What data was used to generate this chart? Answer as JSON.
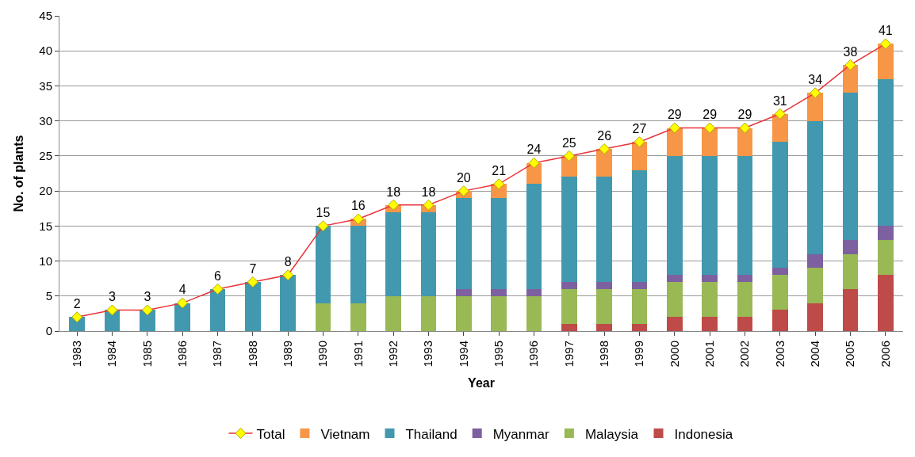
{
  "chart_data": {
    "type": "bar",
    "stacked": true,
    "xlabel": "Year",
    "ylabel": "No. of plants",
    "categories": [
      "1983",
      "1984",
      "1985",
      "1986",
      "1987",
      "1988",
      "1989",
      "1990",
      "1991",
      "1992",
      "1993",
      "1994",
      "1995",
      "1996",
      "1997",
      "1998",
      "1999",
      "2000",
      "2001",
      "2002",
      "2003",
      "2004",
      "2005",
      "2006"
    ],
    "series": [
      {
        "name": "Indonesia",
        "color": "#be4b48",
        "values": [
          null,
          null,
          null,
          null,
          null,
          null,
          null,
          null,
          null,
          null,
          null,
          null,
          null,
          null,
          1,
          1,
          1,
          2,
          2,
          2,
          3,
          4,
          6,
          8
        ]
      },
      {
        "name": "Malaysia",
        "color": "#98b954",
        "values": [
          null,
          null,
          null,
          null,
          null,
          null,
          null,
          4,
          4,
          5,
          5,
          5,
          5,
          5,
          5,
          5,
          5,
          5,
          5,
          5,
          5,
          5,
          5,
          5
        ]
      },
      {
        "name": "Myanmar",
        "color": "#7d60a0",
        "values": [
          null,
          null,
          null,
          null,
          null,
          null,
          null,
          null,
          null,
          null,
          null,
          1,
          1,
          1,
          1,
          1,
          1,
          1,
          1,
          1,
          1,
          2,
          2,
          2
        ]
      },
      {
        "name": "Thailand",
        "color": "#4198af",
        "values": [
          2,
          3,
          3,
          4,
          6,
          7,
          8,
          11,
          11,
          12,
          12,
          13,
          13,
          15,
          15,
          15,
          16,
          17,
          17,
          17,
          18,
          19,
          21,
          21
        ]
      },
      {
        "name": "Vietnam",
        "color": "#f79646",
        "values": [
          null,
          null,
          null,
          null,
          null,
          null,
          null,
          null,
          1,
          1,
          1,
          1,
          2,
          3,
          3,
          4,
          4,
          4,
          4,
          4,
          4,
          4,
          4,
          5
        ]
      },
      {
        "name": "Total",
        "type": "line",
        "color": "#e8333a",
        "marker": "diamond",
        "values": [
          2,
          3,
          3,
          4,
          6,
          7,
          8,
          15,
          16,
          18,
          18,
          20,
          21,
          24,
          25,
          26,
          27,
          29,
          29,
          29,
          31,
          34,
          38,
          41
        ],
        "value_labels": [
          "2",
          "3",
          "3",
          "4",
          "6",
          "7",
          "8",
          "15",
          "16",
          "18",
          "18",
          "20",
          "21",
          "24",
          "25",
          "26",
          "27",
          "29",
          "29",
          "29",
          "31",
          "34",
          "38",
          "41"
        ]
      }
    ],
    "ylim": [
      0,
      45
    ],
    "yticks": [
      0,
      5,
      10,
      15,
      20,
      25,
      30,
      35,
      40,
      45
    ],
    "grid": "y",
    "legend": "bottom"
  }
}
